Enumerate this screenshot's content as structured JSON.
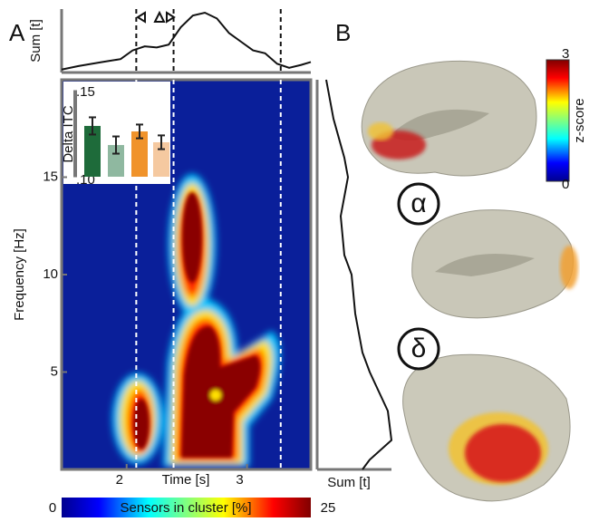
{
  "panel_labels": [
    "A",
    "B"
  ],
  "chart_data": [
    {
      "type": "heatmap",
      "xlabel": "Time [s]",
      "ylabel": "Frequency [Hz]",
      "xlim": [
        1.46,
        3.53
      ],
      "ylim": [
        0,
        20
      ],
      "xticks": [
        2,
        3
      ],
      "yticks": [
        5,
        10,
        15
      ],
      "markers": [
        2.08,
        2.39,
        3.28
      ],
      "colorbar": {
        "label": "Sensors in cluster [%]",
        "ticks": [
          0,
          25
        ]
      }
    },
    {
      "type": "line",
      "ylabel": "Sum [t]",
      "color": "#111111",
      "x": [
        1.46,
        1.6,
        1.8,
        1.95,
        2.05,
        2.15,
        2.25,
        2.35,
        2.45,
        2.55,
        2.65,
        2.75,
        2.85,
        2.95,
        3.05,
        3.15,
        3.25,
        3.35,
        3.45,
        3.53
      ],
      "values": [
        0.02,
        0.08,
        0.15,
        0.2,
        0.35,
        0.42,
        0.4,
        0.45,
        0.75,
        0.95,
        1.0,
        0.9,
        0.65,
        0.5,
        0.35,
        0.3,
        0.12,
        0.05,
        0.1,
        0.15
      ],
      "xlim": [
        1.46,
        3.53
      ],
      "ylim": [
        0,
        1
      ]
    },
    {
      "type": "line-vertical",
      "xlabel": "Sum [t]",
      "color": "#111111",
      "x": [
        20,
        18,
        16,
        15,
        13,
        11,
        10,
        8,
        6,
        5,
        3,
        1.5,
        0.5,
        0
      ],
      "values": [
        0.1,
        0.2,
        0.35,
        0.4,
        0.3,
        0.35,
        0.45,
        0.5,
        0.6,
        0.7,
        0.95,
        1.0,
        0.7,
        0.6
      ],
      "xlim": [
        0,
        20
      ],
      "ylim": [
        0,
        1
      ]
    },
    {
      "type": "bar",
      "ylabel": "Delta ITC",
      "categories": [
        null,
        null,
        null,
        null
      ],
      "values": [
        0.1295,
        0.1184,
        0.1263,
        0.12
      ],
      "errors": [
        0.005,
        0.005,
        0.004,
        0.004
      ],
      "colors": [
        "#1e6b3a",
        "#8fb8a0",
        "#f0932b",
        "#f5c9a0"
      ],
      "ylim": [
        0.1,
        0.15
      ],
      "yticks": [
        {
          "value": 0.15,
          "label": ".15"
        },
        {
          "value": 0.1,
          "label": ".10"
        }
      ]
    }
  ],
  "brain": {
    "labels": [
      "α",
      "δ"
    ],
    "colorbar": {
      "label": "z-score",
      "ticks": [
        0,
        3
      ]
    }
  }
}
